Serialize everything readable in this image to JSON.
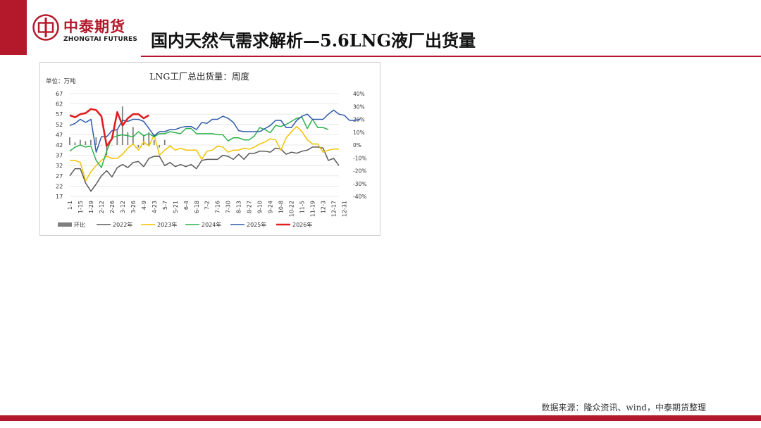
{
  "brand": {
    "name_cn": "中泰期货",
    "name_en": "ZHONGTAI FUTURES",
    "primary_color": "#b3192b"
  },
  "page": {
    "title": "国内天然气需求解析—5.6LNG液厂出货量",
    "source": "数据来源：隆众资讯、wind，中泰期货整理"
  },
  "chart_data": {
    "type": "line",
    "title": "LNG工厂总出货量：周度",
    "unit_label": "单位：万吨",
    "ylim": [
      17,
      67
    ],
    "yticks": [
      "67",
      "62",
      "57",
      "52",
      "47",
      "42",
      "37",
      "32",
      "27",
      "22",
      "17"
    ],
    "y2lim": [
      -40,
      40
    ],
    "y2ticks": [
      "40%",
      "30%",
      "20%",
      "10%",
      "0%",
      "-10%",
      "-20%",
      "-30%",
      "-40%"
    ],
    "x_tick_labels": [
      "1-1",
      "1-15",
      "1-29",
      "2-12",
      "2-26",
      "3-12",
      "3-26",
      "4-9",
      "4-23",
      "5-7",
      "5-21",
      "6-4",
      "6-18",
      "7-2",
      "7-16",
      "7-30",
      "8-13",
      "8-27",
      "9-10",
      "9-24",
      "10-8",
      "10-22",
      "11-5",
      "11-19",
      "12-3",
      "12-17",
      "12-31"
    ],
    "legend_position": "bottom",
    "series": [
      {
        "name": "2022年",
        "color": "#595959",
        "type": "line",
        "values": [
          27,
          30.5,
          30.5,
          23.5,
          19.5,
          23,
          27,
          29.5,
          26.5,
          31,
          32.5,
          31,
          33.5,
          34,
          31.5,
          35.5,
          36.5,
          36.5,
          32,
          33.5,
          31.5,
          32.5,
          31.5,
          32.5,
          30.5,
          34.5,
          35,
          35,
          35,
          37,
          36.5,
          35,
          37.5,
          35,
          38,
          38,
          39,
          39,
          38.5,
          40.5,
          40,
          37.5,
          38.5,
          38,
          39,
          39.5,
          41,
          41,
          40.5,
          34.5,
          35.5,
          32
        ]
      },
      {
        "name": "2023年",
        "color": "#f2c200",
        "type": "line",
        "values": [
          34.5,
          34.5,
          33.5,
          24.5,
          29,
          32,
          34.5,
          36.5,
          35.5,
          35.5,
          37.5,
          40.5,
          42.5,
          39.5,
          43.5,
          41.5,
          47,
          37,
          39.5,
          41.5,
          39.5,
          40.5,
          39.5,
          39.5,
          39.5,
          35,
          39,
          39.5,
          41.5,
          41,
          38.5,
          39.5,
          39.5,
          40.5,
          40,
          41,
          42.5,
          43.5,
          45,
          44.5,
          39.5,
          45.5,
          48.5,
          51,
          48.5,
          44.5,
          42.5,
          42.5,
          38.5,
          39.5,
          40,
          40
        ]
      },
      {
        "name": "2024年",
        "color": "#2cb24b",
        "type": "line",
        "values": [
          39,
          41,
          42,
          41,
          41.5,
          34.5,
          31,
          39,
          45.5,
          46.5,
          47,
          46.5,
          46,
          48.5,
          46.5,
          47.5,
          46,
          47.5,
          47.5,
          48.5,
          48,
          47.5,
          50,
          50,
          47.5,
          47.5,
          47.5,
          47.5,
          47,
          47,
          44,
          45.5,
          45.5,
          44.5,
          44.5,
          46.5,
          50.5,
          49.5,
          48,
          51.5,
          51,
          52,
          53.5,
          55,
          55.5,
          50,
          54.5,
          50.5,
          50.5,
          49.5
        ]
      },
      {
        "name": "2025年",
        "color": "#2e5aa8",
        "type": "line",
        "values": [
          51.5,
          52.5,
          54.5,
          53,
          54.5,
          38.5,
          46,
          46,
          49,
          49.5,
          54,
          53.5,
          54.5,
          54.5,
          53.5,
          50,
          46.5,
          48.5,
          48.5,
          49.5,
          49.5,
          50.5,
          51,
          51,
          49.5,
          53,
          52.5,
          54.5,
          54.5,
          56,
          55,
          53,
          49,
          48.5,
          48.5,
          48.5,
          48.5,
          50,
          51.5,
          54,
          54,
          50.5,
          50.5,
          54,
          56,
          57,
          54.5,
          54.5,
          54.5,
          57,
          59,
          57,
          56.5,
          54,
          54,
          54.5
        ]
      },
      {
        "name": "2026年",
        "color": "#e02020",
        "type": "line",
        "values": [
          56.5,
          55.5,
          57,
          57.5,
          59.5,
          59,
          56,
          41.5,
          45,
          58,
          51.5,
          55,
          57,
          57,
          55,
          56.5
        ]
      },
      {
        "name": "环比",
        "color": "#7f7f7f",
        "type": "bar",
        "values": [
          6,
          2,
          4,
          3,
          4,
          6,
          0,
          -8,
          0,
          12,
          30,
          10,
          14,
          -2,
          8,
          10,
          4,
          -2,
          4,
          0
        ]
      }
    ]
  }
}
